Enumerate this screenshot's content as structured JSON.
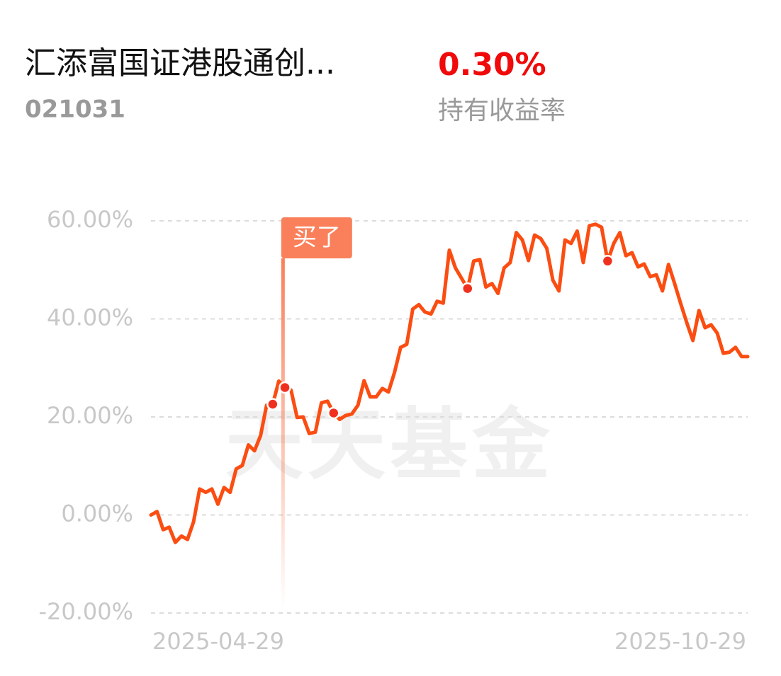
{
  "header": {
    "fund_name": "汇添富国证港股通创...",
    "fund_code": "021031",
    "return_value": "0.30%",
    "return_label": "持有收益率"
  },
  "chart_data": {
    "type": "line",
    "color": "#fb4d12",
    "grid": true,
    "watermark": "天天基金",
    "buy_label": "买了",
    "buy_index": 20,
    "trade_points": [
      20,
      22,
      30,
      52,
      75
    ],
    "ylim": [
      -20,
      60
    ],
    "yticks": [
      {
        "value": -20,
        "label": "-20.00%"
      },
      {
        "value": 0,
        "label": "0.00%"
      },
      {
        "value": 20,
        "label": "20.00%"
      },
      {
        "value": 40,
        "label": "40.00%"
      },
      {
        "value": 60,
        "label": "60.00%"
      }
    ],
    "categories": [
      "2025-04-29",
      null,
      null,
      null,
      null,
      null,
      null,
      null,
      null,
      null,
      null,
      null,
      null,
      null,
      null,
      null,
      null,
      null,
      null,
      null,
      null,
      null,
      null,
      null,
      null,
      null,
      null,
      null,
      null,
      null,
      null,
      null,
      null,
      null,
      null,
      null,
      null,
      null,
      null,
      null,
      null,
      null,
      null,
      null,
      null,
      null,
      null,
      null,
      null,
      null,
      null,
      null,
      null,
      null,
      null,
      null,
      null,
      null,
      null,
      null,
      null,
      null,
      null,
      null,
      null,
      null,
      null,
      null,
      null,
      null,
      null,
      null,
      null,
      null,
      null,
      null,
      null,
      null,
      null,
      null,
      null,
      null,
      null,
      null,
      null,
      null,
      null,
      null,
      null,
      null,
      null,
      null,
      null,
      null,
      null,
      null,
      null,
      null,
      "2025-10-29"
    ],
    "values": [
      0,
      0.7,
      -3,
      -2.5,
      -5.6,
      -4.3,
      -5,
      -1.4,
      5.3,
      4.6,
      5.3,
      2.2,
      5.6,
      4.6,
      9.4,
      10.1,
      14.3,
      13.1,
      16.2,
      22.4,
      22.6,
      27.3,
      26,
      25.5,
      19.9,
      20,
      16.6,
      16.9,
      22.9,
      23.2,
      20.8,
      19.5,
      20.3,
      20.6,
      22.4,
      27.4,
      24.1,
      24.1,
      25.8,
      25.1,
      29.1,
      34.2,
      34.8,
      42,
      42.9,
      41.4,
      41,
      43.6,
      43.2,
      54,
      50.4,
      48.3,
      46.2,
      51.8,
      52.1,
      46.5,
      47.2,
      45.2,
      50.4,
      51.5,
      57.6,
      56.1,
      51.9,
      57.1,
      56.4,
      54.4,
      47.9,
      45.7,
      56.1,
      55.4,
      57.9,
      51.5,
      59,
      59.3,
      58.7,
      51.8,
      55.4,
      57.6,
      52.9,
      53.5,
      50.6,
      51.2,
      48.6,
      49,
      45.7,
      51.1,
      47.2,
      43.1,
      39.2,
      35.6,
      41.7,
      38.2,
      38.8,
      37.1,
      33,
      33.2,
      34.2,
      32.3,
      32.3
    ]
  }
}
